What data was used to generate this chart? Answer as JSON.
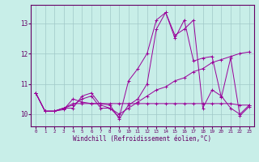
{
  "xlabel": "Windchill (Refroidissement éolien,°C)",
  "ylabel": "",
  "background_color": "#c8eee8",
  "grid_color": "#a0c8c8",
  "line_color": "#990099",
  "marker_color": "#990099",
  "xlim": [
    -0.5,
    23.5
  ],
  "ylim": [
    9.6,
    13.6
  ],
  "yticks": [
    10,
    11,
    12,
    13
  ],
  "xticks": [
    0,
    1,
    2,
    3,
    4,
    5,
    6,
    7,
    8,
    9,
    10,
    11,
    12,
    13,
    14,
    15,
    16,
    17,
    18,
    19,
    20,
    21,
    22,
    23
  ],
  "series": [
    [
      10.7,
      10.1,
      10.1,
      10.2,
      10.2,
      10.6,
      10.7,
      10.3,
      10.2,
      9.9,
      11.1,
      11.5,
      12.0,
      13.1,
      13.35,
      12.6,
      12.8,
      13.1,
      10.2,
      10.8,
      10.6,
      10.2,
      10.0,
      10.3
    ],
    [
      10.7,
      10.1,
      10.1,
      10.2,
      10.3,
      10.5,
      10.6,
      10.2,
      10.2,
      10.0,
      10.2,
      10.4,
      10.6,
      10.8,
      10.9,
      11.1,
      11.2,
      11.4,
      11.5,
      11.7,
      11.8,
      11.9,
      12.0,
      12.05
    ],
    [
      10.7,
      10.1,
      10.1,
      10.2,
      10.35,
      10.35,
      10.35,
      10.35,
      10.35,
      10.35,
      10.35,
      10.35,
      10.35,
      10.35,
      10.35,
      10.35,
      10.35,
      10.35,
      10.35,
      10.35,
      10.35,
      10.35,
      10.3,
      10.3
    ],
    [
      10.7,
      10.1,
      10.1,
      10.15,
      10.5,
      10.4,
      10.35,
      10.35,
      10.3,
      9.85,
      10.3,
      10.5,
      11.0,
      12.8,
      13.35,
      12.5,
      13.1,
      11.75,
      11.85,
      11.9,
      10.55,
      11.85,
      9.95,
      10.25
    ]
  ]
}
